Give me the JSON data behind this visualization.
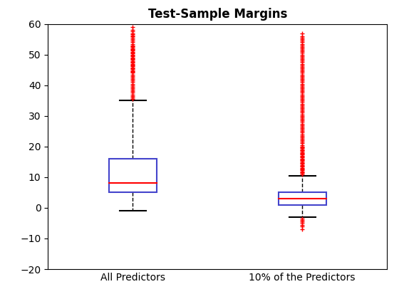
{
  "title": "Test-Sample Margins",
  "categories": [
    "All Predictors",
    "10% of the Predictors"
  ],
  "box1": {
    "q1": 5.0,
    "median": 8.0,
    "q3": 16.0,
    "whisker_low": -1.0,
    "whisker_high": 35.0,
    "outliers_high": [
      35.5,
      36.0,
      36.5,
      37.0,
      37.5,
      38.0,
      38.5,
      39.0,
      39.5,
      40.0,
      40.5,
      41.0,
      41.5,
      42.0,
      42.5,
      43.0,
      43.5,
      44.0,
      44.3,
      44.6,
      44.9,
      45.2,
      45.5,
      45.8,
      46.1,
      46.4,
      46.7,
      47.0,
      47.3,
      47.6,
      47.9,
      48.2,
      48.5,
      48.8,
      49.1,
      49.4,
      49.7,
      50.0,
      50.3,
      50.6,
      50.9,
      51.2,
      51.5,
      51.8,
      52.1,
      52.4,
      52.7,
      53.0,
      53.5,
      54.0,
      54.5,
      55.0,
      55.5,
      56.0,
      56.3,
      56.6,
      57.0,
      57.5,
      58.0,
      59.0
    ],
    "outliers_low": []
  },
  "box2": {
    "q1": 1.0,
    "median": 3.0,
    "q3": 5.0,
    "whisker_low": -3.0,
    "whisker_high": 10.5,
    "outliers_high": [
      11.0,
      11.3,
      11.6,
      11.9,
      12.2,
      12.5,
      12.8,
      13.1,
      13.4,
      13.7,
      14.0,
      14.3,
      14.6,
      14.9,
      15.2,
      15.5,
      15.8,
      16.1,
      16.4,
      16.7,
      17.0,
      17.3,
      17.6,
      17.9,
      18.2,
      18.5,
      18.8,
      19.1,
      19.4,
      19.7,
      20.0,
      20.5,
      21.0,
      21.5,
      22.0,
      22.5,
      23.0,
      23.5,
      24.0,
      24.5,
      25.0,
      25.5,
      26.0,
      26.5,
      27.0,
      27.5,
      28.0,
      28.5,
      29.0,
      29.5,
      30.0,
      30.5,
      31.0,
      31.5,
      32.0,
      32.5,
      33.0,
      33.5,
      34.0,
      34.5,
      35.0,
      35.5,
      36.0,
      36.5,
      37.0,
      37.5,
      38.0,
      38.5,
      39.0,
      39.5,
      40.0,
      40.5,
      41.0,
      41.5,
      42.0,
      42.5,
      43.0,
      43.5,
      44.0,
      44.5,
      45.0,
      45.5,
      46.0,
      46.5,
      47.0,
      47.5,
      48.0,
      48.5,
      49.0,
      49.5,
      50.0,
      50.5,
      51.0,
      51.5,
      52.0,
      52.5,
      53.0,
      53.5,
      54.0,
      54.5,
      55.0,
      55.5,
      56.0,
      57.0
    ],
    "outliers_low": [
      -3.5,
      -4.0,
      -4.5,
      -5.0,
      -5.5,
      -6.0,
      -7.0
    ]
  },
  "ylim": [
    -20,
    60
  ],
  "yticks": [
    -20,
    -10,
    0,
    10,
    20,
    30,
    40,
    50,
    60
  ],
  "box_color": "#4444cc",
  "median_color": "#ff0000",
  "whisker_color": "#000000",
  "outlier_color": "#ff0000",
  "box_width": 0.28,
  "x_positions": [
    1,
    2
  ],
  "xlim": [
    0.5,
    2.5
  ],
  "figsize": [
    5.6,
    4.2
  ],
  "dpi": 100,
  "title_fontsize": 12,
  "tick_fontsize": 10,
  "label_fontsize": 10
}
